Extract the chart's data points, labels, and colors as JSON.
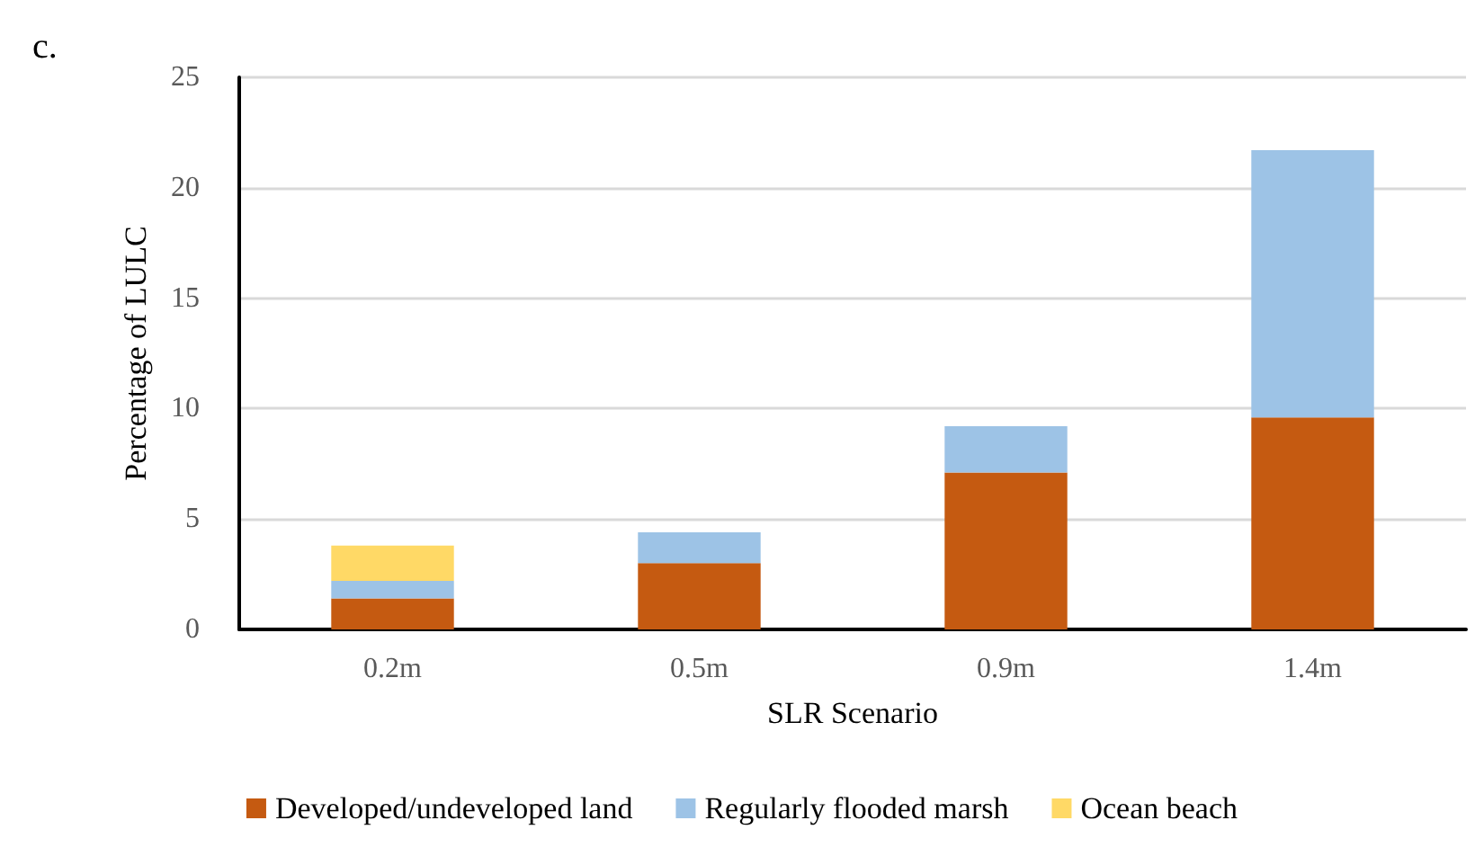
{
  "chart_data": {
    "type": "bar",
    "stacked": true,
    "annotations": [
      "c."
    ],
    "xlabel": "SLR Scenario",
    "ylabel": "Percentage of LULC",
    "categories": [
      "0.2m",
      "0.5m",
      "0.9m",
      "1.4m"
    ],
    "series": [
      {
        "name": "Developed/undeveloped land",
        "color": "#c55a11",
        "values": [
          1.4,
          3.0,
          7.1,
          9.6
        ]
      },
      {
        "name": "Regularly flooded marsh",
        "color": "#9dc3e6",
        "values": [
          0.8,
          1.4,
          2.1,
          12.1
        ]
      },
      {
        "name": "Ocean beach",
        "color": "#ffd966",
        "values": [
          1.6,
          null,
          null,
          null
        ]
      }
    ],
    "ylim": [
      0,
      25
    ],
    "yticks": [
      0,
      5,
      10,
      15,
      20,
      25
    ],
    "grid": "y",
    "legend": "bottom"
  }
}
